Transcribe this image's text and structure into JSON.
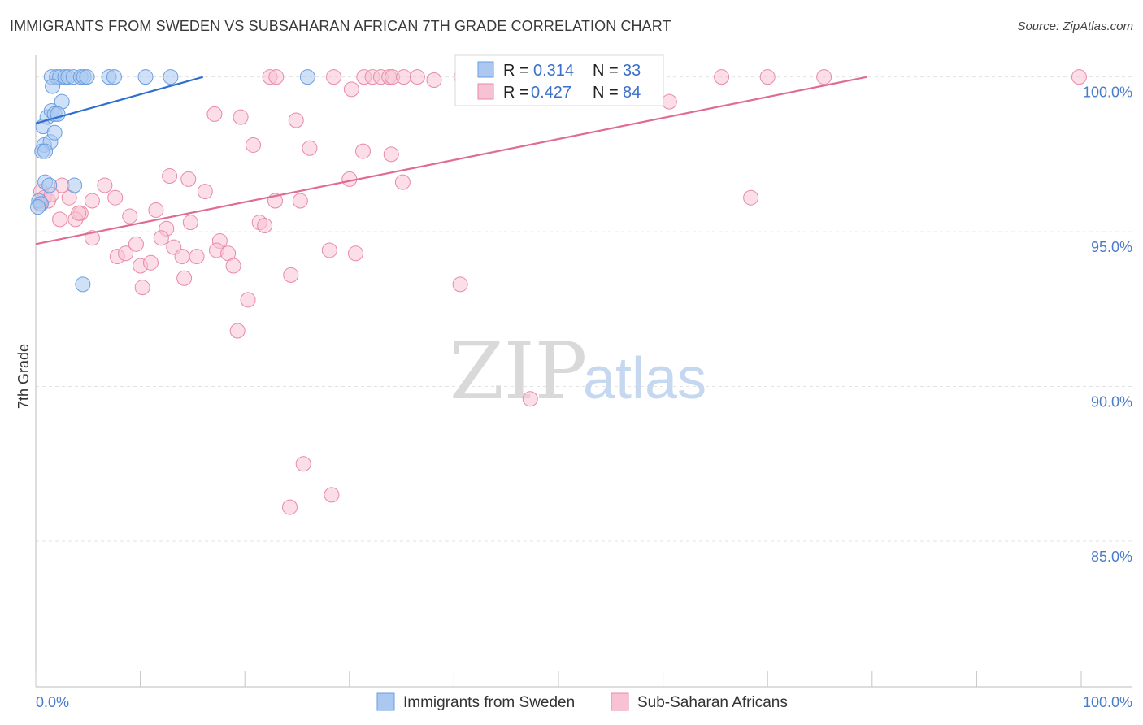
{
  "chart_data": {
    "type": "scatter",
    "title": "IMMIGRANTS FROM SWEDEN VS SUBSAHARAN AFRICAN 7TH GRADE CORRELATION CHART",
    "source": "Source: ZipAtlas.com",
    "ylabel": "7th Grade",
    "xlabel": "",
    "xlim": [
      0,
      100
    ],
    "ylim": [
      80.3,
      100.7
    ],
    "x_tick_labels": [
      "0.0%",
      "100.0%"
    ],
    "y_ticks": [
      85,
      90,
      95,
      100
    ],
    "y_tick_labels": [
      "85.0%",
      "90.0%",
      "95.0%",
      "100.0%"
    ],
    "grid": true,
    "legend_position": "top-center",
    "watermark": {
      "part1": "ZIP",
      "part2": "atlas"
    },
    "series": [
      {
        "name": "Immigrants from Sweden",
        "color": "#6a9ee0",
        "fill": "#aac8f0",
        "line_color": "#2f6fcf",
        "R": "0.314",
        "N": "33",
        "R_label": "R =",
        "N_label": "N =",
        "trend": {
          "x0": 0,
          "y0": 98.5,
          "x1": 16,
          "y1": 100
        },
        "points": [
          [
            1.5,
            100
          ],
          [
            2,
            100
          ],
          [
            2.3,
            100
          ],
          [
            2.8,
            100
          ],
          [
            3.1,
            100
          ],
          [
            3.6,
            100
          ],
          [
            4.3,
            100
          ],
          [
            4.6,
            100
          ],
          [
            4.9,
            100
          ],
          [
            7,
            100
          ],
          [
            7.5,
            100
          ],
          [
            10.5,
            100
          ],
          [
            12.9,
            100
          ],
          [
            26,
            100
          ],
          [
            1.6,
            99.7
          ],
          [
            2.5,
            99.2
          ],
          [
            1.1,
            98.7
          ],
          [
            1.5,
            98.9
          ],
          [
            1.8,
            98.8
          ],
          [
            2.1,
            98.8
          ],
          [
            0.7,
            98.4
          ],
          [
            0.8,
            97.8
          ],
          [
            1.4,
            97.9
          ],
          [
            0.6,
            97.6
          ],
          [
            0.9,
            97.6
          ],
          [
            1.8,
            98.2
          ],
          [
            0.9,
            96.6
          ],
          [
            3.7,
            96.5
          ],
          [
            0.3,
            96.0
          ],
          [
            0.5,
            95.9
          ],
          [
            0.2,
            95.8
          ],
          [
            1.3,
            96.5
          ],
          [
            4.5,
            93.3
          ]
        ]
      },
      {
        "name": "Sub-Saharan Africans",
        "color": "#e88aa8",
        "fill": "#f7c2d3",
        "line_color": "#e06b94",
        "R": "0.427",
        "N": "84",
        "R_label": "R =",
        "N_label": "N =",
        "trend": {
          "x0": 0,
          "y0": 94.6,
          "x1": 79.5,
          "y1": 100
        },
        "points": [
          [
            22.4,
            100
          ],
          [
            23,
            100
          ],
          [
            28.5,
            100
          ],
          [
            31.4,
            100
          ],
          [
            32.2,
            100
          ],
          [
            33,
            100
          ],
          [
            33.8,
            100
          ],
          [
            34.1,
            100
          ],
          [
            35.2,
            100
          ],
          [
            36.5,
            100
          ],
          [
            40.7,
            100
          ],
          [
            48.9,
            100
          ],
          [
            51.7,
            100
          ],
          [
            55.6,
            100
          ],
          [
            59.2,
            100
          ],
          [
            65.6,
            100
          ],
          [
            70,
            100
          ],
          [
            75.4,
            100
          ],
          [
            99.8,
            100
          ],
          [
            30.2,
            99.6
          ],
          [
            38.1,
            99.9
          ],
          [
            41,
            99.3
          ],
          [
            60.6,
            99.2
          ],
          [
            17.1,
            98.8
          ],
          [
            19.6,
            98.7
          ],
          [
            24.9,
            98.6
          ],
          [
            20.8,
            97.8
          ],
          [
            26.2,
            97.7
          ],
          [
            31.3,
            97.6
          ],
          [
            34,
            97.5
          ],
          [
            12.8,
            96.8
          ],
          [
            14.6,
            96.7
          ],
          [
            30,
            96.7
          ],
          [
            35.1,
            96.6
          ],
          [
            16.2,
            96.3
          ],
          [
            6.6,
            96.5
          ],
          [
            7.6,
            96.1
          ],
          [
            5.4,
            96.0
          ],
          [
            3.2,
            96.1
          ],
          [
            22.9,
            96.0
          ],
          [
            25.3,
            96.0
          ],
          [
            68.4,
            96.1
          ],
          [
            11.5,
            95.7
          ],
          [
            9,
            95.5
          ],
          [
            14.8,
            95.3
          ],
          [
            4.3,
            95.6
          ],
          [
            2.3,
            95.4
          ],
          [
            3.8,
            95.4
          ],
          [
            12.5,
            95.1
          ],
          [
            21.4,
            95.3
          ],
          [
            21.9,
            95.2
          ],
          [
            17.6,
            94.7
          ],
          [
            5.4,
            94.8
          ],
          [
            12,
            94.8
          ],
          [
            7.8,
            94.2
          ],
          [
            8.6,
            94.3
          ],
          [
            9.6,
            94.6
          ],
          [
            13.2,
            94.5
          ],
          [
            14,
            94.2
          ],
          [
            15.4,
            94.2
          ],
          [
            17.3,
            94.4
          ],
          [
            18.4,
            94.3
          ],
          [
            28.1,
            94.4
          ],
          [
            30.6,
            94.3
          ],
          [
            10,
            93.9
          ],
          [
            11,
            94.0
          ],
          [
            18.9,
            93.9
          ],
          [
            14.2,
            93.5
          ],
          [
            24.4,
            93.6
          ],
          [
            10.2,
            93.2
          ],
          [
            40.6,
            93.3
          ],
          [
            20.3,
            92.8
          ],
          [
            19.3,
            91.8
          ],
          [
            47.3,
            89.6
          ],
          [
            25.6,
            87.5
          ],
          [
            28.3,
            86.5
          ],
          [
            24.3,
            86.1
          ],
          [
            4.1,
            95.6
          ],
          [
            0.5,
            96.3
          ],
          [
            0.8,
            96.1
          ],
          [
            1.2,
            96.0
          ],
          [
            2.5,
            96.5
          ],
          [
            0.4,
            95.9
          ],
          [
            1.5,
            96.2
          ]
        ]
      }
    ]
  }
}
